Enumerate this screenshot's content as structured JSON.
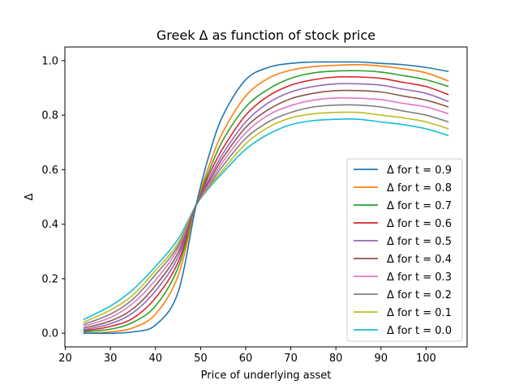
{
  "chart_data": {
    "type": "line",
    "title": "Greek Δ as function of stock price",
    "xlabel": "Price of underlying asset",
    "ylabel": "Δ",
    "xlim": [
      19.9,
      109.1
    ],
    "ylim": [
      -0.05,
      1.05
    ],
    "xticks": [
      20,
      30,
      40,
      50,
      60,
      70,
      80,
      90,
      100
    ],
    "yticks": [
      0.0,
      0.2,
      0.4,
      0.6,
      0.8,
      1.0
    ],
    "xtick_labels": [
      "20",
      "30",
      "40",
      "50",
      "60",
      "70",
      "80",
      "90",
      "100"
    ],
    "ytick_labels": [
      "0.0",
      "0.2",
      "0.4",
      "0.6",
      "0.8",
      "1.0"
    ],
    "grid": false,
    "legend_position": "lower-right",
    "x": [
      24,
      30,
      35,
      40,
      45,
      49,
      52,
      55,
      60,
      65,
      70,
      75,
      80,
      85,
      90,
      95,
      100,
      105
    ],
    "series": [
      {
        "name": "Δ for t = 0.9",
        "color": "#1f77b4",
        "values": [
          0.0,
          0.0,
          0.005,
          0.03,
          0.15,
          0.47,
          0.66,
          0.8,
          0.93,
          0.975,
          0.99,
          0.995,
          0.995,
          0.995,
          0.99,
          0.985,
          0.975,
          0.96
        ]
      },
      {
        "name": "Δ for t = 0.8",
        "color": "#ff7f0e",
        "values": [
          0.0,
          0.005,
          0.02,
          0.07,
          0.21,
          0.47,
          0.62,
          0.74,
          0.87,
          0.935,
          0.965,
          0.978,
          0.983,
          0.985,
          0.98,
          0.97,
          0.955,
          0.925
        ]
      },
      {
        "name": "Δ for t = 0.7",
        "color": "#2ca02c",
        "values": [
          0.005,
          0.015,
          0.04,
          0.1,
          0.24,
          0.47,
          0.6,
          0.71,
          0.83,
          0.895,
          0.935,
          0.955,
          0.962,
          0.963,
          0.958,
          0.945,
          0.93,
          0.905
        ]
      },
      {
        "name": "Δ for t = 0.6",
        "color": "#d62728",
        "values": [
          0.008,
          0.025,
          0.055,
          0.13,
          0.26,
          0.47,
          0.585,
          0.68,
          0.8,
          0.87,
          0.91,
          0.93,
          0.94,
          0.94,
          0.935,
          0.92,
          0.905,
          0.875
        ]
      },
      {
        "name": "Δ for t = 0.5",
        "color": "#9467bd",
        "values": [
          0.012,
          0.035,
          0.075,
          0.155,
          0.28,
          0.47,
          0.57,
          0.66,
          0.775,
          0.845,
          0.885,
          0.905,
          0.915,
          0.915,
          0.91,
          0.895,
          0.88,
          0.85
        ]
      },
      {
        "name": "Δ for t = 0.4",
        "color": "#8c564b",
        "values": [
          0.018,
          0.045,
          0.09,
          0.175,
          0.295,
          0.47,
          0.56,
          0.645,
          0.755,
          0.82,
          0.86,
          0.88,
          0.89,
          0.89,
          0.885,
          0.87,
          0.855,
          0.83
        ]
      },
      {
        "name": "Δ for t = 0.3",
        "color": "#e377c2",
        "values": [
          0.025,
          0.058,
          0.11,
          0.195,
          0.31,
          0.47,
          0.55,
          0.63,
          0.735,
          0.8,
          0.835,
          0.855,
          0.863,
          0.862,
          0.857,
          0.843,
          0.83,
          0.805
        ]
      },
      {
        "name": "Δ for t = 0.2",
        "color": "#7f7f7f",
        "values": [
          0.032,
          0.07,
          0.125,
          0.215,
          0.32,
          0.47,
          0.545,
          0.615,
          0.715,
          0.775,
          0.81,
          0.83,
          0.837,
          0.837,
          0.83,
          0.815,
          0.8,
          0.775
        ]
      },
      {
        "name": "Δ for t = 0.1",
        "color": "#bcbd22",
        "values": [
          0.04,
          0.085,
          0.14,
          0.23,
          0.33,
          0.47,
          0.54,
          0.6,
          0.695,
          0.755,
          0.79,
          0.805,
          0.81,
          0.81,
          0.8,
          0.79,
          0.775,
          0.75
        ]
      },
      {
        "name": "Δ for t = 0.0",
        "color": "#17becf",
        "values": [
          0.05,
          0.1,
          0.16,
          0.245,
          0.345,
          0.47,
          0.535,
          0.59,
          0.675,
          0.73,
          0.765,
          0.78,
          0.785,
          0.785,
          0.775,
          0.765,
          0.75,
          0.725
        ]
      }
    ]
  }
}
